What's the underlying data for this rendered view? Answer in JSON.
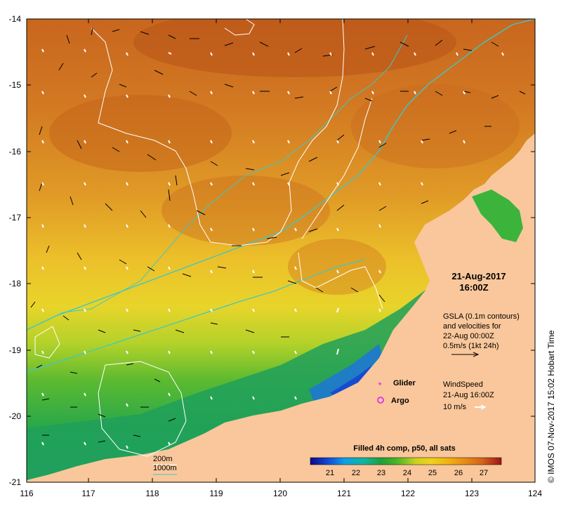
{
  "map": {
    "x_ticks": [
      "116",
      "117",
      "118",
      "119",
      "120",
      "121",
      "122",
      "123",
      "124"
    ],
    "y_ticks": [
      "-14",
      "-15",
      "-16",
      "-17",
      "-18",
      "-19",
      "-20",
      "-21"
    ],
    "date": "21-Aug-2017",
    "time": "16:00Z",
    "gsla": {
      "line1": "GSLA (0.1m contours)",
      "line2": "and velocities for",
      "line3": "22-Aug 00:00Z",
      "line4": "0.5m/s (1kt 24h)"
    },
    "wind": {
      "line1": "WindSpeed",
      "line2": "21-Aug 16:00Z",
      "line3": "10 m/s"
    },
    "legend": {
      "glider": "Glider",
      "argo": "Argo"
    },
    "depth": {
      "d200": "200m",
      "d1000": "1000m"
    },
    "colorbar": {
      "title": "Filled 4h comp, p50, all sats",
      "ticks": [
        "21",
        "22",
        "23",
        "24",
        "25",
        "26",
        "27"
      ],
      "colors": [
        "#0a0a8c",
        "#1446d2",
        "#0ea0e6",
        "#12b4a0",
        "#1ea03c",
        "#46b428",
        "#c8d21e",
        "#f0d21e",
        "#f0b414",
        "#e68c14",
        "#d2641e",
        "#b43c14",
        "#a01414"
      ]
    },
    "credit": "© IMOS 07-Nov-2017 15:02 Hobart Time",
    "colors": {
      "land": "#f9c79b",
      "isobath_1000": "#3cc8c8",
      "contour": "#ffffff",
      "glider": "#e040e0",
      "argo": "#e040e0"
    }
  }
}
